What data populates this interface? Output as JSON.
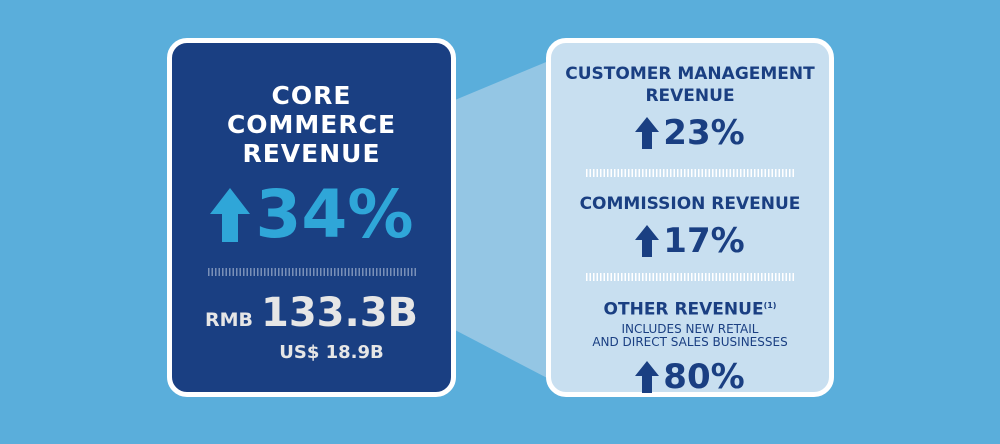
{
  "colors": {
    "background": "#5aaedb",
    "core_card": "#1a3f82",
    "accent": "#2fa6d8",
    "detail_card": "#c8dff0",
    "text_dark": "#1a3f82"
  },
  "core": {
    "title_lines": [
      "CORE",
      "COMMERCE",
      "REVENUE"
    ],
    "growth": "34%",
    "arrow_icon": "arrow-up-icon",
    "currency": "RMB",
    "amount": "133.3B",
    "usd": "US$ 18.9B"
  },
  "breakdown": [
    {
      "title_lines": [
        "CUSTOMER MANAGEMENT",
        "REVENUE"
      ],
      "growth": "23%"
    },
    {
      "title_lines": [
        "COMMISSION REVENUE"
      ],
      "growth": "17%"
    },
    {
      "title_lines": [
        "OTHER REVENUE"
      ],
      "footnote": "(1)",
      "subtitle_lines": [
        "INCLUDES NEW RETAIL",
        "AND DIRECT SALES BUSINESSES"
      ],
      "growth": "80%"
    }
  ]
}
